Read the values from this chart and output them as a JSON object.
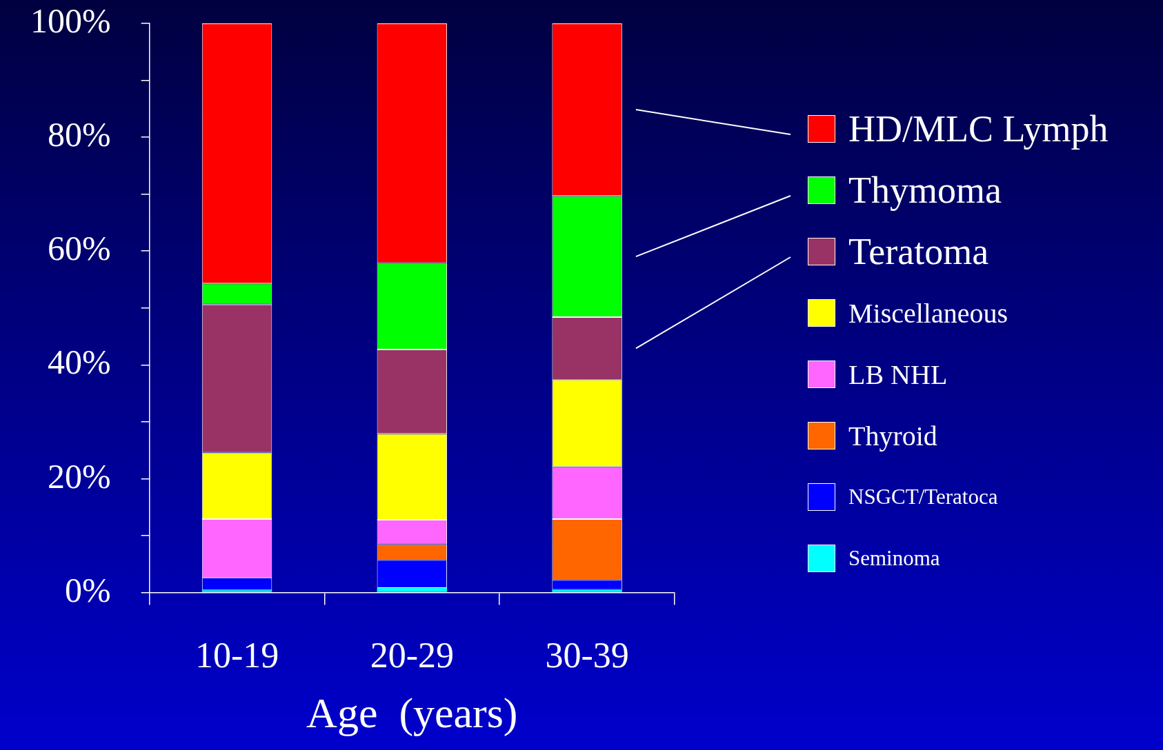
{
  "chart_data": {
    "type": "bar",
    "stacked": true,
    "categories": [
      "10-19",
      "20-29",
      "30-39"
    ],
    "xlabel": "Age  (years)",
    "ylim": [
      0,
      100
    ],
    "yticks": [
      {
        "value": 0,
        "label": "0%"
      },
      {
        "value": 10,
        "label": null
      },
      {
        "value": 20,
        "label": "20%"
      },
      {
        "value": 30,
        "label": null
      },
      {
        "value": 40,
        "label": "40%"
      },
      {
        "value": 50,
        "label": null
      },
      {
        "value": 60,
        "label": "60%"
      },
      {
        "value": 70,
        "label": null
      },
      {
        "value": 80,
        "label": "80%"
      },
      {
        "value": 90,
        "label": null
      },
      {
        "value": 100,
        "label": "100%"
      }
    ],
    "grid": false,
    "legend": "right",
    "series": [
      {
        "name": "Seminoma",
        "color": "#00ffff",
        "values": [
          0.4,
          0.8,
          0.5
        ]
      },
      {
        "name": "NSGCT/Teratoca",
        "color": "#0000ff",
        "values": [
          2.2,
          4.9,
          1.7
        ]
      },
      {
        "name": "Thyroid",
        "color": "#ff6600",
        "values": [
          0,
          2.8,
          10.7
        ]
      },
      {
        "name": "LB NHL",
        "color": "#ff66ff",
        "values": [
          10.3,
          4.3,
          9.2
        ]
      },
      {
        "name": "Miscellaneous",
        "color": "#ffff00",
        "values": [
          11.7,
          15.1,
          15.3
        ]
      },
      {
        "name": "Teratoma",
        "color": "#993366",
        "values": [
          26.0,
          14.8,
          11.0
        ]
      },
      {
        "name": "Thymoma",
        "color": "#00ff00",
        "values": [
          3.7,
          15.2,
          21.3
        ]
      },
      {
        "name": "HD/MLC Lymph",
        "color": "#ff0000",
        "values": [
          45.7,
          42.1,
          30.3
        ]
      }
    ]
  }
}
